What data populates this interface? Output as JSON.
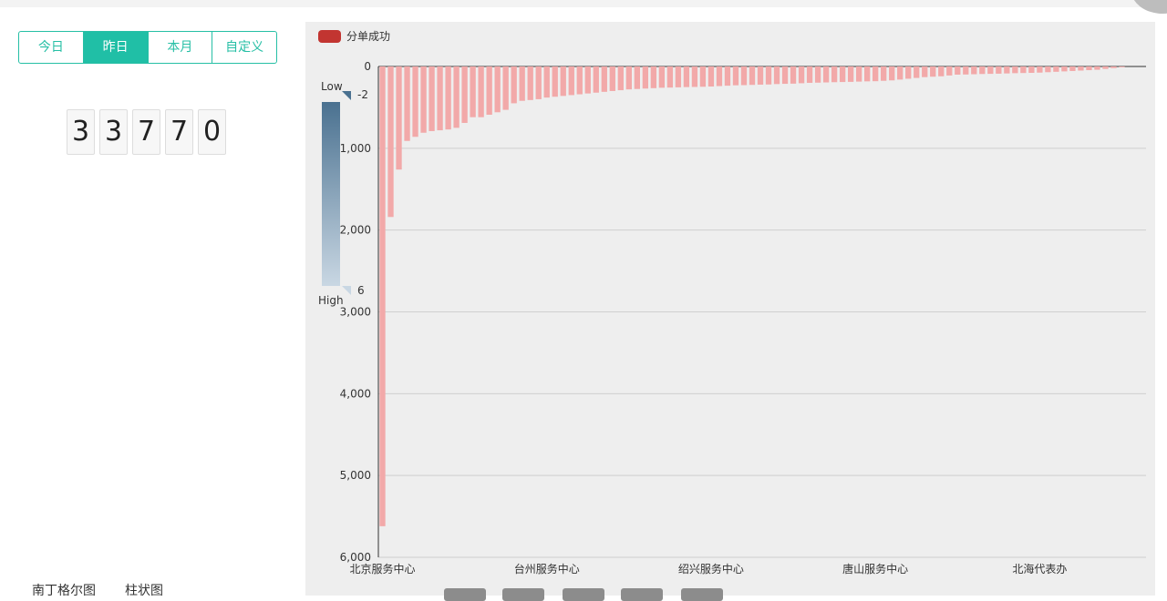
{
  "tabs": [
    "今日",
    "昨日",
    "本月",
    "自定义"
  ],
  "active_tab": 1,
  "counter_digits": [
    "3",
    "3",
    "7",
    "7",
    "0"
  ],
  "bottom_links": [
    "南丁格尔图",
    "柱状图"
  ],
  "chart_data": {
    "type": "bar",
    "series": [
      {
        "name": "分单成功",
        "color": "#c23531",
        "bar_color": "#f2a9a9",
        "values": [
          5620,
          1840,
          1260,
          910,
          860,
          810,
          790,
          780,
          770,
          750,
          690,
          620,
          620,
          590,
          560,
          530,
          450,
          420,
          410,
          400,
          380,
          370,
          360,
          350,
          340,
          330,
          320,
          310,
          300,
          290,
          280,
          275,
          270,
          265,
          260,
          258,
          255,
          252,
          250,
          248,
          245,
          240,
          235,
          230,
          228,
          225,
          222,
          220,
          215,
          212,
          210,
          205,
          200,
          198,
          195,
          192,
          190,
          188,
          185,
          182,
          180,
          175,
          170,
          160,
          150,
          140,
          130,
          125,
          120,
          110,
          100,
          98,
          95,
          92,
          90,
          88,
          85,
          82,
          80,
          78,
          75,
          70,
          65,
          60,
          55,
          50,
          45,
          40,
          30,
          20,
          10
        ]
      }
    ],
    "categories": [
      "北京服务中心",
      null,
      null,
      null,
      null,
      null,
      null,
      null,
      null,
      null,
      null,
      null,
      null,
      null,
      null,
      null,
      null,
      null,
      null,
      null,
      "台州服务中心",
      null,
      null,
      null,
      null,
      null,
      null,
      null,
      null,
      null,
      null,
      null,
      null,
      null,
      null,
      null,
      null,
      null,
      null,
      null,
      "绍兴服务中心",
      null,
      null,
      null,
      null,
      null,
      null,
      null,
      null,
      null,
      null,
      null,
      null,
      null,
      null,
      null,
      null,
      null,
      null,
      null,
      "唐山服务中心",
      null,
      null,
      null,
      null,
      null,
      null,
      null,
      null,
      null,
      null,
      null,
      null,
      null,
      null,
      null,
      null,
      null,
      null,
      null,
      "北海代表办",
      null,
      null,
      null,
      null,
      null,
      null,
      null,
      null,
      null,
      null
    ],
    "ylim": [
      0,
      6000
    ],
    "y_inverted": true,
    "yticks": [
      0,
      {
        "value": 1000,
        "label": "1,000"
      },
      {
        "value": 2000,
        "label": "2,000"
      },
      {
        "value": 3000,
        "label": "3,000"
      },
      {
        "value": 4000,
        "label": "4,000"
      },
      {
        "value": 5000,
        "label": "5,000"
      },
      {
        "value": 6000,
        "label": "6,000"
      }
    ],
    "grid": true,
    "visual_map": {
      "low_text": "Low",
      "high_text": "High",
      "min": -2,
      "max": 6,
      "colors": [
        "#4a7190",
        "#c9d7e3"
      ]
    }
  }
}
